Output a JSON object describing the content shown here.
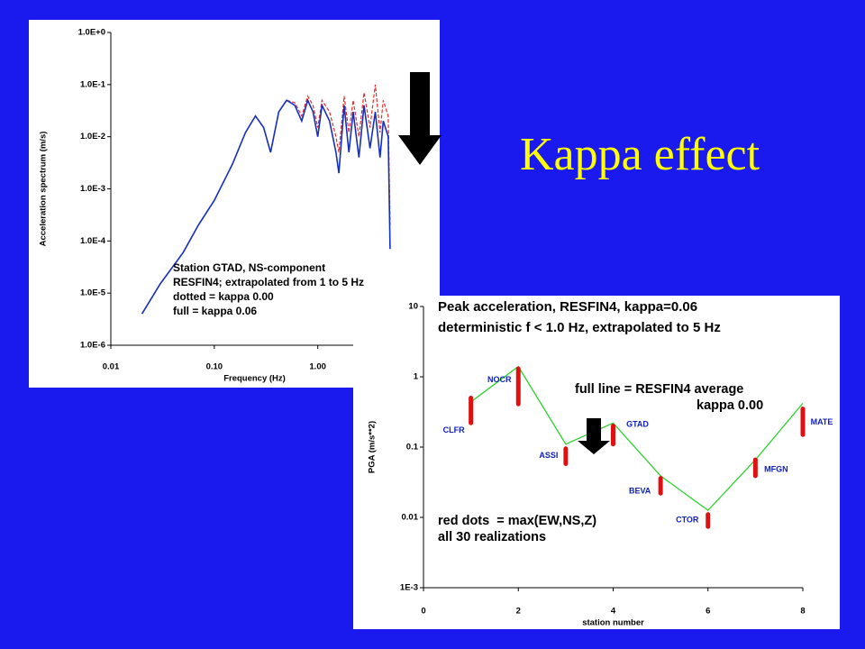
{
  "slide": {
    "title": "Kappa effect"
  },
  "chart_data": [
    {
      "type": "line",
      "log_x": true,
      "log_y": true,
      "x_label": "Frequency (Hz)",
      "y_label": "Acceleration spectrum (m/s)",
      "annotations": [
        "Station GTAD, NS-component",
        "RESFIN4; extrapolated from 1 to 5 Hz",
        "dotted = kappa 0.00",
        "full = kappa 0.06"
      ],
      "x": [
        0.02,
        0.03,
        0.05,
        0.07,
        0.1,
        0.15,
        0.2,
        0.25,
        0.3,
        0.35,
        0.42,
        0.5,
        0.6,
        0.7,
        0.8,
        0.9,
        1.0,
        1.1,
        1.3,
        1.5,
        1.6,
        1.8,
        2.0,
        2.2,
        2.5,
        2.8,
        3.2,
        3.6,
        4.0,
        4.3,
        4.8,
        5.0
      ],
      "series": [
        {
          "color": "#e03030",
          "style": "dotted",
          "values": [
            4e-06,
            1.5e-05,
            6e-05,
            0.0002,
            0.0006,
            0.003,
            0.012,
            0.025,
            0.015,
            0.005,
            0.03,
            0.05,
            0.045,
            0.025,
            0.06,
            0.04,
            0.015,
            0.05,
            0.03,
            0.01,
            0.005,
            0.06,
            0.012,
            0.05,
            0.01,
            0.07,
            0.015,
            0.1,
            0.012,
            0.05,
            0.025,
            0.0002
          ]
        },
        {
          "color": "#1530c0",
          "style": "solid",
          "values": [
            4e-06,
            1.5e-05,
            6e-05,
            0.0002,
            0.0006,
            0.003,
            0.012,
            0.025,
            0.015,
            0.005,
            0.03,
            0.05,
            0.04,
            0.02,
            0.05,
            0.03,
            0.01,
            0.04,
            0.02,
            0.005,
            0.002,
            0.04,
            0.005,
            0.03,
            0.004,
            0.04,
            0.006,
            0.03,
            0.004,
            0.02,
            0.01,
            7e-05
          ]
        }
      ],
      "xlim": [
        0.01,
        6
      ],
      "xticks": [
        0.01,
        {
          "value": 0.1,
          "label": "0.10"
        },
        {
          "value": 1,
          "label": "1.00"
        }
      ],
      "ylim": [
        1e-06,
        1
      ],
      "yticks": [
        {
          "value": 1e-06,
          "label": "1.0E-6"
        },
        {
          "value": 1e-05,
          "label": "1.0E-5"
        },
        {
          "value": 0.0001,
          "label": "1.0E-4"
        },
        {
          "value": 0.001,
          "label": "1.0E-3"
        },
        {
          "value": 0.01,
          "label": "1.0E-2"
        },
        {
          "value": 0.1,
          "label": "1.0E-1"
        },
        {
          "value": 1,
          "label": "1.0E+0"
        }
      ]
    },
    {
      "type": "range-line",
      "log_y": true,
      "title_lines": [
        "Peak acceleration, RESFIN4, kappa=0.06",
        "deterministic f < 1.0 Hz, extrapolated to 5 Hz"
      ],
      "x_label": "station number",
      "y_label": "PGA (m/s**2)",
      "annotations": [
        "full line = RESFIN4 average",
        "kappa 0.00",
        "red dots  = max(EW,NS,Z)",
        "all 30 realizations"
      ],
      "x": [
        1,
        2,
        3,
        4,
        5,
        6,
        7,
        8
      ],
      "station_names": [
        "CLFR",
        "NOCR",
        "ASSI",
        "GTAD",
        "BEVA",
        "CTOR",
        "MFGN",
        "MATE"
      ],
      "line_color": "#30d030",
      "values": [
        0.44,
        1.4,
        0.11,
        0.22,
        0.039,
        0.0126,
        0.066,
        0.42
      ],
      "dots_color": "#e01010",
      "dots_low": [
        0.22,
        0.41,
        0.058,
        0.11,
        0.022,
        0.0074,
        0.039,
        0.15
      ],
      "dots_high": [
        0.5,
        1.3,
        0.095,
        0.2,
        0.036,
        0.011,
        0.066,
        0.35
      ],
      "xlim": [
        0,
        8
      ],
      "xticks": [
        0,
        2,
        4,
        6,
        8
      ],
      "ylim": [
        0.001,
        10
      ],
      "yticks": [
        {
          "value": 0.001,
          "label": "1E-3"
        },
        0.01,
        0.1,
        1,
        10
      ]
    }
  ]
}
